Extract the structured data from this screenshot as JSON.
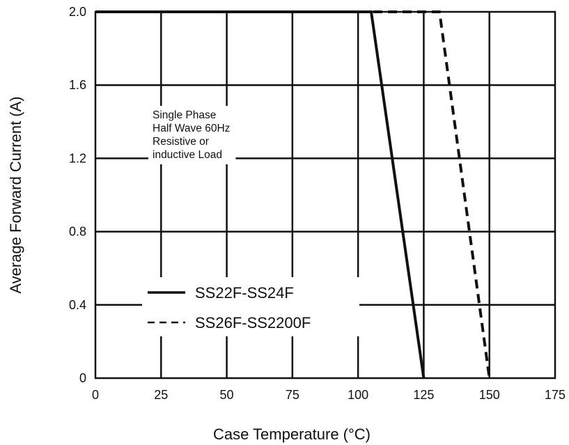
{
  "chart_data": {
    "type": "line",
    "title": "",
    "xlabel": "Case Temperature (°C)",
    "ylabel": "Average Forward Current (A)",
    "xlim": [
      0,
      175
    ],
    "ylim": [
      0,
      2.0
    ],
    "xticks": [
      0,
      25,
      50,
      75,
      100,
      125,
      150,
      175
    ],
    "yticks": [
      0,
      0.4,
      0.8,
      1.2,
      1.6,
      2.0
    ],
    "xtick_labels": [
      "0",
      "25",
      "50",
      "75",
      "100",
      "125",
      "150",
      "175"
    ],
    "ytick_labels": [
      "0",
      "0.4",
      "0.8",
      "1.2",
      "1.6",
      "2.0"
    ],
    "grid": true,
    "annotation": [
      "Single Phase",
      "Half Wave 60Hz",
      "Resistive or",
      "inductive Load"
    ],
    "legend_position": "lower-left",
    "series": [
      {
        "name": "SS22F-SS24F",
        "style": "solid",
        "color": "#111111",
        "x": [
          0,
          105,
          125
        ],
        "y": [
          2.0,
          2.0,
          0
        ]
      },
      {
        "name": "SS26F-SS2200F",
        "style": "dashed",
        "color": "#111111",
        "x": [
          0,
          131,
          150
        ],
        "y": [
          2.0,
          2.0,
          0
        ]
      }
    ]
  }
}
